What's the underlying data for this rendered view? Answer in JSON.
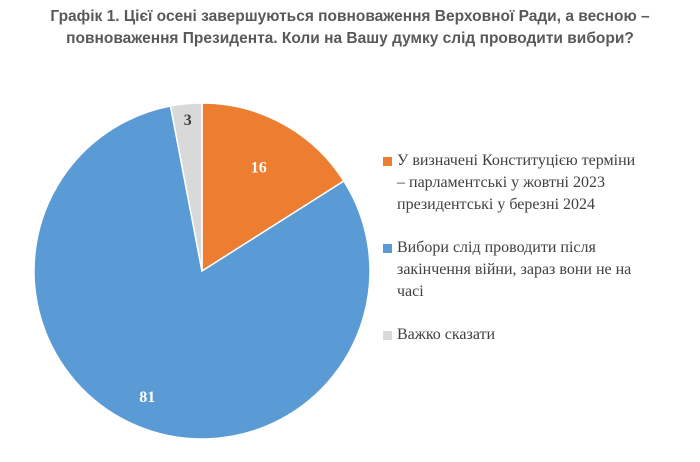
{
  "title": [
    "Графік 1. Цієї осені завершуються повноваження Верховної Ради, а весною –",
    "повноваження Президента. Коли на Вашу думку слід проводити вибори?"
  ],
  "colors": {
    "orange": "#ED7D31",
    "blue": "#5B9BD5",
    "gray": "#D9D9D9"
  },
  "chart_data": {
    "type": "pie",
    "title": "Графік 1. Цієї осені завершуються повноваження Верховної Ради, а весною – повноваження Президента. Коли на Вашу думку слід проводити вибори?",
    "legend_position": "right",
    "slices": [
      {
        "label": "У визначені Конституцією терміни – парламентські у жовтні 2023 президентські у березні 2024",
        "legend_lines": [
          "У визначені Конституцією терміни",
          "– парламентські у жовтні 2023",
          "президентські у березні 2024"
        ],
        "value": 16,
        "value_label": "16",
        "color": "#ED7D31"
      },
      {
        "label": "Вибори слід проводити після закінчення війни, зараз вони не на часі",
        "legend_lines": [
          "Вибори слід проводити після",
          "закінчення війни, зараз вони не на",
          "часі"
        ],
        "value": 81,
        "value_label": "81",
        "color": "#5B9BD5"
      },
      {
        "label": "Важко сказати",
        "legend_lines": [
          "Важко сказати"
        ],
        "value": 3,
        "value_label": "3",
        "color": "#D9D9D9"
      }
    ]
  }
}
